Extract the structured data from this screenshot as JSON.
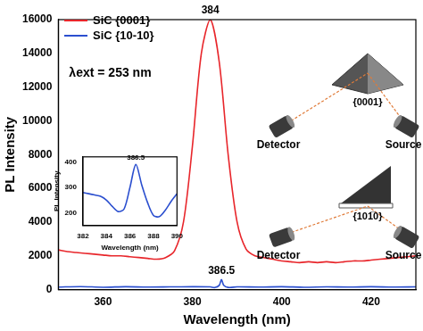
{
  "chart_data": [
    {
      "type": "line",
      "xlabel": "Wavelength (nm)",
      "ylabel": "PL Intensity",
      "xlim": [
        350,
        430
      ],
      "xticks": [
        360,
        380,
        400,
        420
      ],
      "ylim": [
        0,
        16000
      ],
      "yticks": [
        0,
        2000,
        4000,
        6000,
        8000,
        10000,
        12000,
        14000,
        16000
      ],
      "grid": false,
      "legend": "upper left",
      "series": [
        {
          "name": "SiC {0001}",
          "color": "#e8262b",
          "x": [
            350,
            352,
            354,
            356,
            358,
            360,
            362,
            364,
            366,
            368,
            370,
            372,
            374,
            376,
            378,
            380,
            382,
            384,
            386,
            388,
            390,
            392,
            394,
            396,
            398,
            400,
            402,
            404,
            406,
            408,
            410,
            412,
            414,
            416,
            418,
            420,
            422,
            424,
            426,
            428,
            430
          ],
          "values": [
            2350,
            2250,
            2200,
            2150,
            2100,
            2050,
            2000,
            2000,
            1950,
            1900,
            1850,
            1800,
            1900,
            2300,
            4000,
            8500,
            14000,
            16000,
            13500,
            8000,
            4000,
            2400,
            2000,
            1900,
            1800,
            1700,
            1650,
            1600,
            1650,
            1600,
            1650,
            1600,
            1650,
            1700,
            1700,
            1750,
            1800,
            1850,
            1900,
            1950,
            2000
          ]
        },
        {
          "name": "SiC {10-10}",
          "color": "#2b4fcf",
          "x": [
            350,
            355,
            360,
            365,
            370,
            375,
            380,
            384,
            385,
            386,
            386.5,
            387,
            388,
            390,
            395,
            400,
            405,
            410,
            415,
            420,
            425,
            430
          ],
          "values": [
            150,
            180,
            140,
            170,
            150,
            160,
            170,
            160,
            120,
            250,
            600,
            260,
            130,
            160,
            150,
            170,
            140,
            160,
            150,
            170,
            150,
            160
          ]
        }
      ],
      "annotations": [
        {
          "text": "384",
          "x": 384,
          "series": "SiC {0001}"
        },
        {
          "text": "386.5",
          "x": 386.5,
          "series": "SiC {10-10}"
        },
        {
          "text": "λext = 253 nm"
        }
      ]
    },
    {
      "type": "line",
      "xlabel": "Wavelength (nm)",
      "ylabel": "PL Intensity",
      "xlim": [
        382,
        390
      ],
      "xticks": [
        382,
        384,
        386,
        388,
        390
      ],
      "ylim": [
        150,
        420
      ],
      "yticks": [
        200,
        300,
        400
      ],
      "grid": false,
      "series": [
        {
          "color": "#2b4fcf",
          "x": [
            382,
            382.5,
            383,
            383.5,
            384,
            384.5,
            385,
            385.5,
            386,
            386.5,
            387,
            387.5,
            388,
            388.5,
            389,
            389.5,
            390
          ],
          "values": [
            280,
            275,
            270,
            265,
            250,
            225,
            205,
            215,
            300,
            390,
            310,
            240,
            190,
            185,
            210,
            245,
            275
          ]
        }
      ],
      "annotations": [
        {
          "text": "386.5",
          "x": 386.5
        }
      ]
    }
  ],
  "diagrams": [
    {
      "face": "{0001}",
      "detector": "Detector",
      "source": "Source"
    },
    {
      "face": "{101̅0}",
      "detector": "Detector",
      "source": "Source"
    }
  ]
}
